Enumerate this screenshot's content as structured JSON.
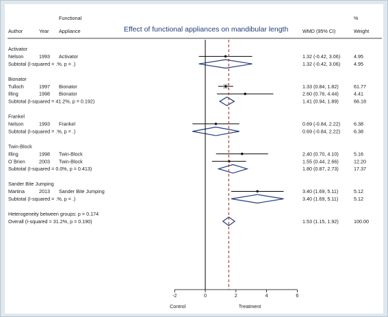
{
  "chart_data": {
    "type": "forest",
    "title": "Effect of functional appliances on mandibular length",
    "columns": {
      "author": "Author",
      "year": "Year",
      "appliance_line1": "Functional",
      "appliance_line2": "Appliance",
      "wmd": "WMD (95% CI)",
      "weight_line1": "%",
      "weight_line2": "Weight"
    },
    "xaxis": {
      "ticks": [
        -2,
        0,
        2,
        4,
        6
      ],
      "range": [
        -4.4,
        7.0
      ],
      "null_line": 0,
      "overall_line": 1.53,
      "label_left": "Control",
      "label_right": "Treatment"
    },
    "rows": [
      {
        "kind": "group",
        "label": "Activator"
      },
      {
        "kind": "study",
        "author": "Nelson",
        "year": "1993",
        "appliance": "Activator",
        "est": 1.32,
        "lo": -0.42,
        "hi": 3.06,
        "ci_text": "1.32 (-0.42, 3.06)",
        "weight": "4.95"
      },
      {
        "kind": "subtotal",
        "label": "Subtotal  (I-squared = .%, p = .)",
        "est": 1.32,
        "lo": -0.42,
        "hi": 3.06,
        "ci_text": "1.32 (-0.42, 3.06)",
        "weight": "4.95"
      },
      {
        "kind": "blank"
      },
      {
        "kind": "group",
        "label": "Bionator"
      },
      {
        "kind": "study",
        "author": "Tulloch",
        "year": "1997",
        "appliance": "Bionator",
        "est": 1.33,
        "lo": 0.84,
        "hi": 1.82,
        "ci_text": "1.33 (0.84, 1.82)",
        "weight": "61.77"
      },
      {
        "kind": "study",
        "author": "Illing",
        "year": "1998",
        "appliance": "Bionator",
        "est": 2.6,
        "lo": 0.76,
        "hi": 4.44,
        "ci_text": "2.60 (0.76, 4.44)",
        "weight": "4.41"
      },
      {
        "kind": "subtotal",
        "label": "Subtotal  (I-squared = 41.2%, p = 0.192)",
        "est": 1.41,
        "lo": 0.94,
        "hi": 1.89,
        "ci_text": "1.41 (0.94, 1.89)",
        "weight": "66.18"
      },
      {
        "kind": "blank"
      },
      {
        "kind": "group",
        "label": "Frankel"
      },
      {
        "kind": "study",
        "author": "Nelson",
        "year": "1993",
        "appliance": "Frankel",
        "est": 0.69,
        "lo": -0.84,
        "hi": 2.22,
        "ci_text": "0.69 (-0.84, 2.22)",
        "weight": "6.38"
      },
      {
        "kind": "subtotal",
        "label": "Subtotal  (I-squared = .%, p = .)",
        "est": 0.69,
        "lo": -0.84,
        "hi": 2.22,
        "ci_text": "0.69 (-0.84, 2.22)",
        "weight": "6.38"
      },
      {
        "kind": "blank"
      },
      {
        "kind": "group",
        "label": "Twin-Block"
      },
      {
        "kind": "study",
        "author": "Illing",
        "year": "1998",
        "appliance": "Twin-Block",
        "est": 2.4,
        "lo": 0.7,
        "hi": 4.1,
        "ci_text": "2.40 (0.70, 4.10)",
        "weight": "5.16"
      },
      {
        "kind": "study",
        "author": "O`Brien",
        "year": "2003",
        "appliance": "Twin-Block",
        "est": 1.55,
        "lo": 0.44,
        "hi": 2.66,
        "ci_text": "1.55 (0.44, 2.66)",
        "weight": "12.20"
      },
      {
        "kind": "subtotal",
        "label": "Subtotal  (I-squared = 0.0%, p = 0.413)",
        "est": 1.8,
        "lo": 0.87,
        "hi": 2.73,
        "ci_text": "1.80 (0.87, 2.73)",
        "weight": "17.37"
      },
      {
        "kind": "blank"
      },
      {
        "kind": "group",
        "label": "Sander Bite Jumping"
      },
      {
        "kind": "study",
        "author": "Martina",
        "year": "2013",
        "appliance": "Sander Bite Jumping",
        "est": 3.4,
        "lo": 1.69,
        "hi": 5.11,
        "ci_text": "3.40 (1.69, 5.11)",
        "weight": "5.12"
      },
      {
        "kind": "subtotal",
        "label": "Subtotal  (I-squared = .%, p = .)",
        "est": 3.4,
        "lo": 1.69,
        "hi": 5.11,
        "ci_text": "3.40 (1.69, 5.11)",
        "weight": "5.12"
      },
      {
        "kind": "blank"
      },
      {
        "kind": "note",
        "label": "Heterogeneity between groups: p = 0.174"
      },
      {
        "kind": "overall",
        "label": "Overall  (I-squared = 31.2%, p = 0.190)",
        "est": 1.53,
        "lo": 1.15,
        "hi": 1.92,
        "ci_text": "1.53 (1.15, 1.92)",
        "weight": "100.00"
      }
    ],
    "colors": {
      "diamond": "#1f3b7a",
      "overall_line": "#a0302a",
      "text": "#1a1a1a"
    }
  }
}
